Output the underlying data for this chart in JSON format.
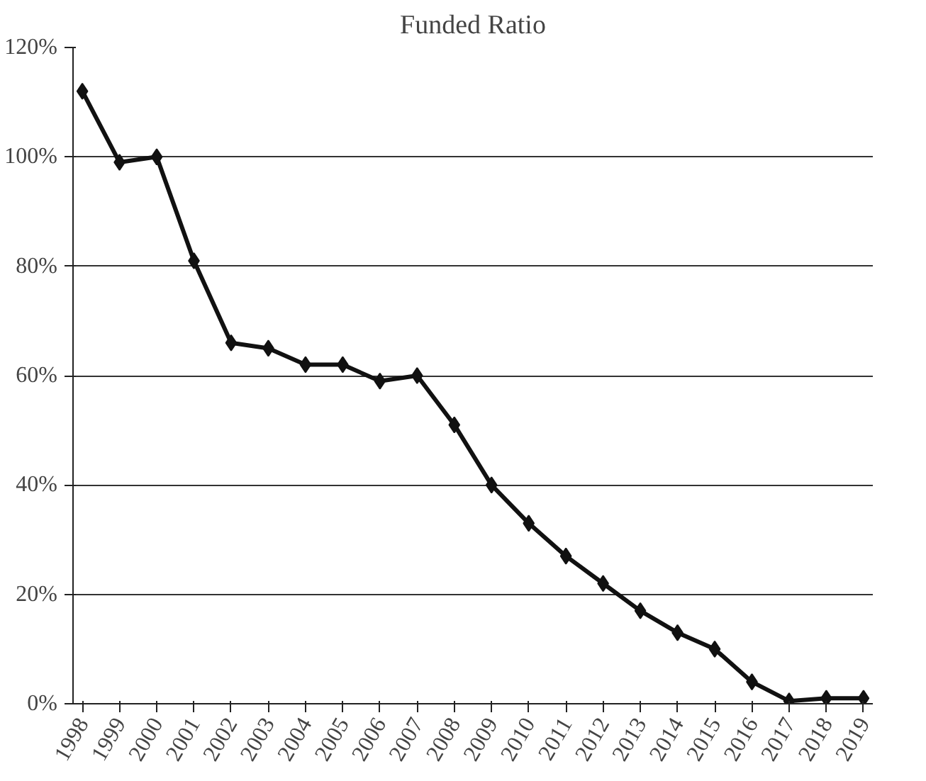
{
  "chart_data": {
    "type": "line",
    "title": "Funded Ratio",
    "categories": [
      "1998",
      "1999",
      "2000",
      "2001",
      "2002",
      "2003",
      "2004",
      "2005",
      "2006",
      "2007",
      "2008",
      "2009",
      "2010",
      "2011",
      "2012",
      "2013",
      "2014",
      "2015",
      "2016",
      "2017",
      "2018",
      "2019"
    ],
    "series": [
      {
        "color": "#111111",
        "values": [
          112,
          99,
          100,
          81,
          66,
          65,
          62,
          62,
          59,
          60,
          51,
          40,
          33,
          27,
          22,
          17,
          13,
          10,
          4,
          0.5,
          1,
          1
        ]
      }
    ],
    "ylim": [
      0,
      120
    ],
    "yticks": [
      {
        "value": 0,
        "label": "0%"
      },
      {
        "value": 20,
        "label": "20%"
      },
      {
        "value": 40,
        "label": "40%"
      },
      {
        "value": 60,
        "label": "60%"
      },
      {
        "value": 80,
        "label": "80%"
      },
      {
        "value": 100,
        "label": "100%"
      },
      {
        "value": 120,
        "label": "120%"
      }
    ],
    "grid": "y",
    "marker": "diamond",
    "line_style": "solid"
  }
}
